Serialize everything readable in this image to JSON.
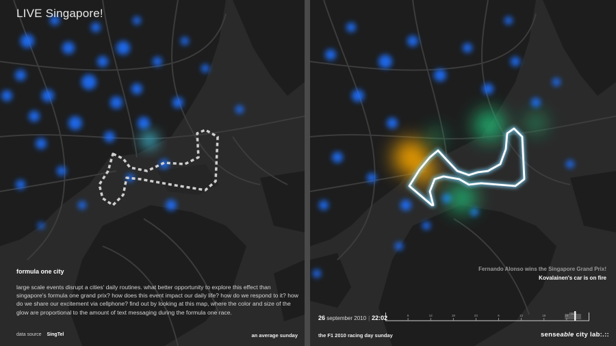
{
  "title": "LIVE Singapore!",
  "left_panel": {
    "heading": "formula one city",
    "description": "large scale events disrupt a cities' daily routines. what better opportunity to explore this effect than singapore's formula one grand prix? how does this event impact our daily life? how do we respond to it? how do we share our excitement via cellphone? find out by looking at this map, where the color and size of the glow are proportional to the amount of text messaging during the formula one race.",
    "source_label": "data source",
    "source_name": "SingTel",
    "caption": "an average sunday"
  },
  "right_panel": {
    "news_line1": "Fernando Alonso wins the Singapore Grand Prix!",
    "news_line2": "Kovalainen's car is on fire",
    "date_day": "26",
    "date_rest": "september 2010",
    "time": "22:02",
    "caption": "the F1 2010 racing day sunday",
    "brand_prefix": "sense",
    "brand_italic": "able",
    "brand_suffix": " city lab:.::"
  },
  "timeline": {
    "tick_labels": [
      "6",
      "12",
      "18",
      "24",
      "6",
      "12",
      "18",
      "24"
    ],
    "race_label": "race",
    "current_fraction": 0.93
  },
  "colors": {
    "map_bg": "#2a2a2a",
    "land": "#1d1d1d",
    "roads": "#3c3c3c",
    "glow_low": "#1e6fff",
    "glow_mid": "#21c37a",
    "glow_high": "#f5a400",
    "track_left": "#cfcfcf",
    "track_right": "#ffffff"
  }
}
